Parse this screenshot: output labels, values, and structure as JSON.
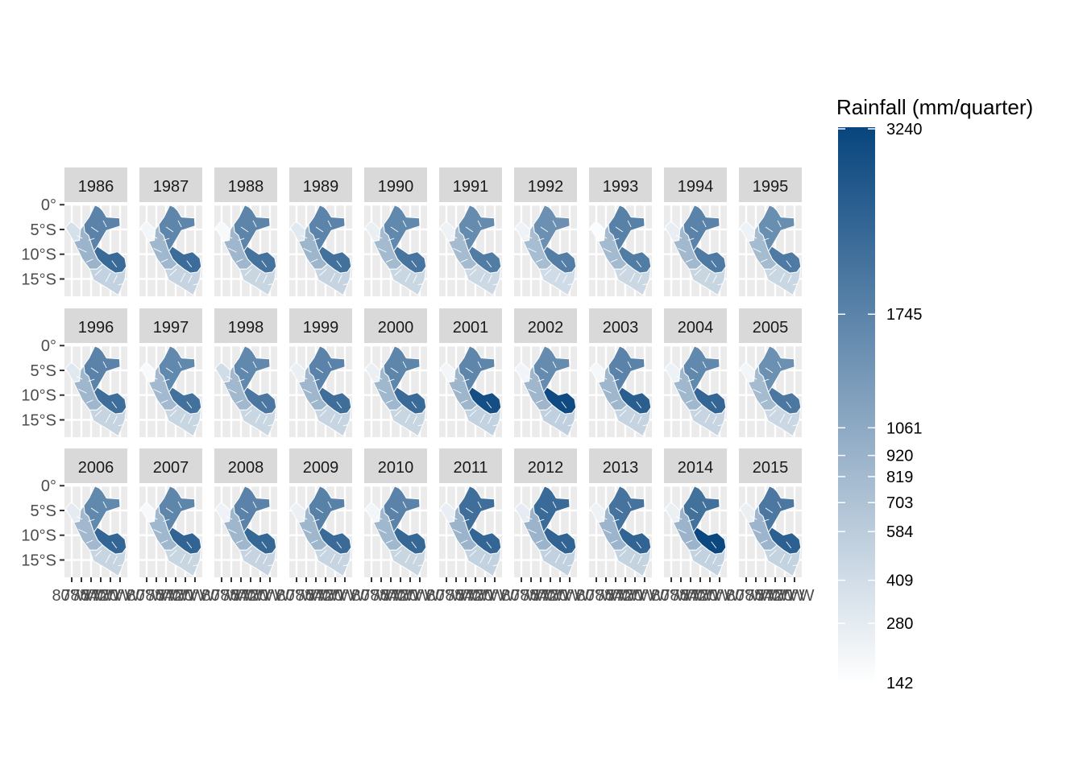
{
  "map": {
    "type": "faceted-choropleth",
    "region": "Peru",
    "facets": [
      "1986",
      "1987",
      "1988",
      "1989",
      "1990",
      "1991",
      "1992",
      "1993",
      "1994",
      "1995",
      "1996",
      "1997",
      "1998",
      "1999",
      "2000",
      "2001",
      "2002",
      "2003",
      "2004",
      "2005",
      "2006",
      "2007",
      "2008",
      "2009",
      "2010",
      "2011",
      "2012",
      "2013",
      "2014",
      "2015"
    ],
    "facet_columns": 10,
    "y_axis_labels": [
      "0°",
      "5°S",
      "10°S",
      "15°S"
    ],
    "y_axis_values": [
      0,
      -5,
      -10,
      -15
    ],
    "x_axis_labels": [
      "80°W",
      "78°W",
      "76°W",
      "74°W",
      "72°W",
      "70°W"
    ],
    "x_axis_values": [
      -80,
      -78,
      -76,
      -74,
      -72,
      -70
    ],
    "x_lim": [
      -81.5,
      -68.5
    ],
    "y_lim": [
      -18.5,
      0.2
    ],
    "facet_values": [
      {
        "north": 1750,
        "south_east": 2300,
        "coast": 380,
        "south": 520,
        "centre": 900
      },
      {
        "north": 1700,
        "south_east": 2250,
        "coast": 200,
        "south": 500,
        "centre": 850
      },
      {
        "north": 1720,
        "south_east": 2100,
        "coast": 180,
        "south": 480,
        "centre": 870
      },
      {
        "north": 1730,
        "south_east": 2150,
        "coast": 300,
        "south": 500,
        "centre": 880
      },
      {
        "north": 1650,
        "south_east": 2050,
        "coast": 250,
        "south": 470,
        "centre": 820
      },
      {
        "north": 1600,
        "south_east": 1900,
        "coast": 230,
        "south": 450,
        "centre": 800
      },
      {
        "north": 1500,
        "south_east": 1850,
        "coast": 220,
        "south": 430,
        "centre": 780
      },
      {
        "north": 1800,
        "south_east": 1900,
        "coast": 160,
        "south": 460,
        "centre": 820
      },
      {
        "north": 1750,
        "south_east": 1950,
        "coast": 260,
        "south": 480,
        "centre": 840
      },
      {
        "north": 1550,
        "south_east": 1950,
        "coast": 230,
        "south": 470,
        "centre": 800
      },
      {
        "north": 1750,
        "south_east": 2200,
        "coast": 300,
        "south": 500,
        "centre": 860
      },
      {
        "north": 1650,
        "south_east": 2150,
        "coast": 170,
        "south": 480,
        "centre": 830
      },
      {
        "north": 1650,
        "south_east": 2000,
        "coast": 420,
        "south": 470,
        "centre": 840
      },
      {
        "north": 1750,
        "south_east": 2200,
        "coast": 250,
        "south": 490,
        "centre": 860
      },
      {
        "north": 1700,
        "south_east": 2300,
        "coast": 240,
        "south": 480,
        "centre": 850
      },
      {
        "north": 1700,
        "south_east": 3000,
        "coast": 200,
        "south": 520,
        "centre": 880
      },
      {
        "north": 1600,
        "south_east": 3100,
        "coast": 210,
        "south": 540,
        "centre": 870
      },
      {
        "north": 1750,
        "south_east": 2600,
        "coast": 190,
        "south": 500,
        "centre": 860
      },
      {
        "north": 1650,
        "south_east": 2400,
        "coast": 230,
        "south": 490,
        "centre": 850
      },
      {
        "north": 1500,
        "south_east": 2000,
        "coast": 200,
        "south": 460,
        "centre": 800
      },
      {
        "north": 1650,
        "south_east": 2400,
        "coast": 280,
        "south": 490,
        "centre": 840
      },
      {
        "north": 1700,
        "south_east": 2450,
        "coast": 180,
        "south": 480,
        "centre": 850
      },
      {
        "north": 1750,
        "south_east": 2350,
        "coast": 220,
        "south": 500,
        "centre": 860
      },
      {
        "north": 1800,
        "south_east": 2300,
        "coast": 240,
        "south": 490,
        "centre": 860
      },
      {
        "north": 1750,
        "south_east": 2350,
        "coast": 200,
        "south": 480,
        "centre": 850
      },
      {
        "north": 2200,
        "south_east": 2400,
        "coast": 260,
        "south": 520,
        "centre": 900
      },
      {
        "north": 2300,
        "south_east": 2450,
        "coast": 270,
        "south": 530,
        "centre": 910
      },
      {
        "north": 2100,
        "south_east": 2450,
        "coast": 230,
        "south": 510,
        "centre": 890
      },
      {
        "north": 2150,
        "south_east": 3150,
        "coast": 240,
        "south": 520,
        "centre": 900
      },
      {
        "north": 2000,
        "south_east": 2550,
        "coast": 250,
        "south": 510,
        "centre": 890
      }
    ]
  },
  "legend": {
    "title": "Rainfall (mm/quarter)",
    "breaks": [
      3240,
      1745,
      1061,
      920,
      819,
      703,
      584,
      409,
      280,
      142
    ],
    "break_labels": [
      "3240",
      "1745",
      "1061",
      "920",
      "819",
      "703",
      "584",
      "409",
      "280",
      "142"
    ],
    "low_color": "#ffffff",
    "high_color": "#08457e"
  },
  "colors": {
    "panel_background": "#ebebeb",
    "strip_background": "#d9d9d9",
    "grid": "#ffffff",
    "region_border": "#ffffff"
  }
}
